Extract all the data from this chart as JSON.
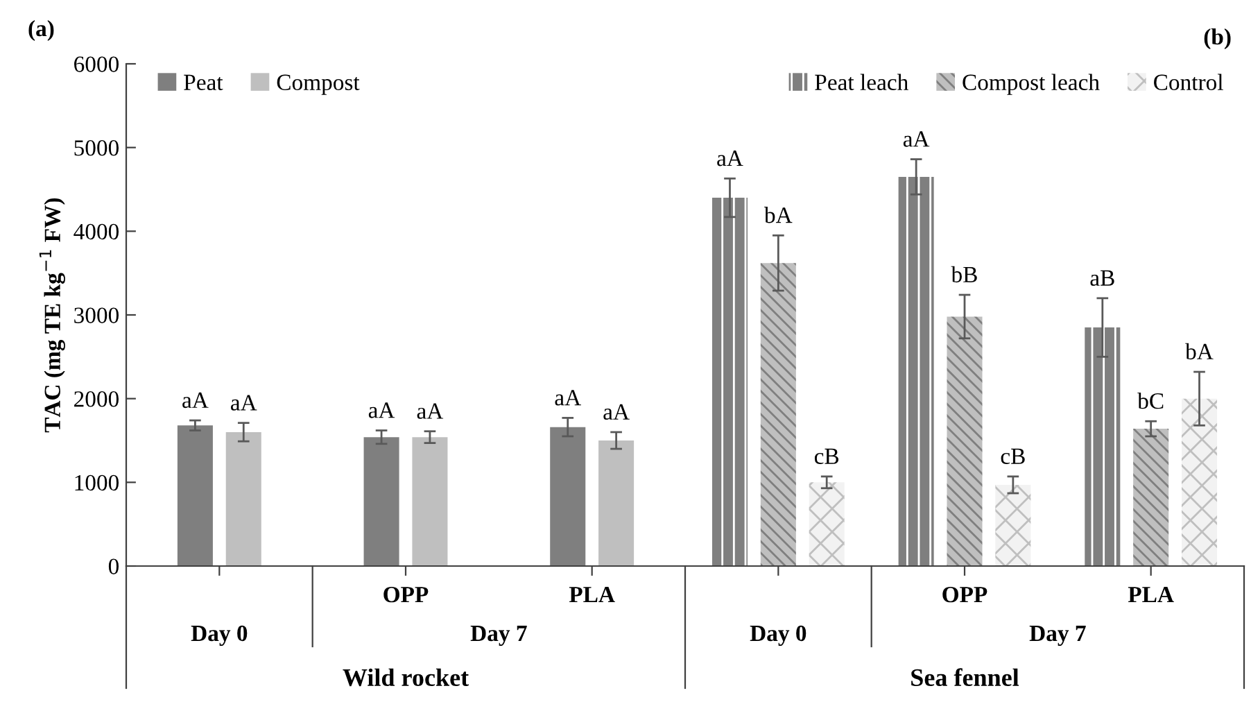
{
  "chart_data": {
    "type": "bar",
    "ylabel": "TAC (mg TE kg$^{−1}$ FW)",
    "categories": [
      null,
      "OPP",
      "PLA",
      null,
      "OPP",
      "PLA"
    ],
    "series": [
      {
        "name": "Peat",
        "color": "#7f7f7f",
        "values": [
          1680,
          1540,
          1660,
          null,
          null,
          null
        ],
        "errors": [
          60,
          80,
          110,
          null,
          null,
          null
        ],
        "value_labels": [
          "aA",
          "aA",
          "aA",
          null,
          null,
          null
        ]
      },
      {
        "name": "Compost",
        "color": "#bfbfbf",
        "values": [
          1600,
          1540,
          1500,
          null,
          null,
          null
        ],
        "errors": [
          110,
          70,
          100,
          null,
          null,
          null
        ],
        "value_labels": [
          "aA",
          "aA",
          "aA",
          null,
          null,
          null
        ]
      },
      {
        "name": "Peat leach",
        "color": "#7f7f7f",
        "values": [
          null,
          null,
          null,
          4400,
          4650,
          2850
        ],
        "errors": [
          null,
          null,
          null,
          230,
          210,
          350
        ],
        "value_labels": [
          null,
          null,
          null,
          "aA",
          "aA",
          "aB"
        ]
      },
      {
        "name": "Compost leach",
        "color": "#bfbfbf",
        "values": [
          null,
          null,
          null,
          3620,
          2980,
          1640
        ],
        "errors": [
          null,
          null,
          null,
          330,
          260,
          90
        ],
        "value_labels": [
          null,
          null,
          null,
          "bA",
          "bB",
          "bC"
        ]
      },
      {
        "name": "Control",
        "color": "#f2f2f2",
        "values": [
          null,
          null,
          null,
          1000,
          970,
          2000
        ],
        "errors": [
          null,
          null,
          null,
          70,
          100,
          320
        ],
        "value_labels": [
          null,
          null,
          null,
          "cB",
          "cB",
          "bA"
        ]
      }
    ],
    "ylim": [
      0,
      6000
    ],
    "yticks": [
      0,
      1000,
      2000,
      3000,
      4000,
      5000,
      6000
    ],
    "grid": false,
    "legend": "top",
    "annotations": [
      "(a)",
      "(b)",
      "Day 0",
      "Day 7",
      "Day 0",
      "Day 7",
      "Wild rocket",
      "Sea fennel"
    ]
  }
}
